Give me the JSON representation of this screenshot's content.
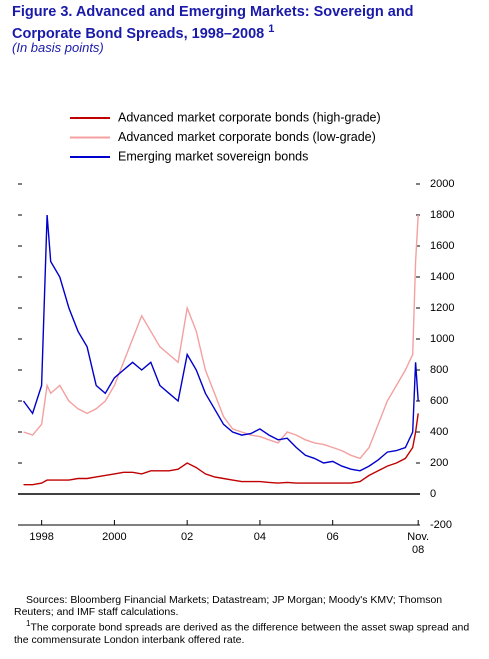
{
  "chart_data": {
    "type": "line",
    "title": "Figure 3. Advanced and Emerging Markets: Sovereign and Corporate Bond Spreads, 1998–2008",
    "title_note": "1",
    "subtitle": "(In basis points)",
    "x": [
      1998.0,
      1998.25,
      1998.5,
      1998.65,
      1998.75,
      1999.0,
      1999.25,
      1999.5,
      1999.75,
      2000.0,
      2000.25,
      2000.5,
      2000.75,
      2001.0,
      2001.25,
      2001.5,
      2001.75,
      2002.0,
      2002.25,
      2002.5,
      2002.75,
      2003.0,
      2003.25,
      2003.5,
      2003.75,
      2004.0,
      2004.25,
      2004.5,
      2004.75,
      2005.0,
      2005.25,
      2005.5,
      2005.75,
      2006.0,
      2006.25,
      2006.5,
      2006.75,
      2007.0,
      2007.25,
      2007.5,
      2007.75,
      2008.0,
      2008.25,
      2008.5,
      2008.7,
      2008.78,
      2008.85
    ],
    "series": [
      {
        "name": "Advanced market corporate bonds (high-grade)",
        "color": "#c00000",
        "values": [
          60,
          60,
          70,
          90,
          90,
          90,
          90,
          100,
          100,
          110,
          120,
          130,
          140,
          140,
          130,
          150,
          150,
          150,
          160,
          200,
          170,
          130,
          110,
          100,
          90,
          80,
          80,
          80,
          75,
          70,
          75,
          70,
          70,
          70,
          70,
          70,
          70,
          70,
          80,
          120,
          150,
          180,
          200,
          230,
          300,
          400,
          520
        ]
      },
      {
        "name": "Advanced market corporate bonds (low-grade)",
        "color": "#f4a0a0",
        "values": [
          400,
          380,
          450,
          700,
          650,
          700,
          600,
          550,
          520,
          550,
          600,
          700,
          850,
          1000,
          1150,
          1050,
          950,
          900,
          850,
          1200,
          1050,
          800,
          650,
          500,
          420,
          400,
          380,
          370,
          350,
          330,
          400,
          380,
          350,
          330,
          320,
          300,
          280,
          250,
          230,
          300,
          450,
          600,
          700,
          800,
          900,
          1500,
          1800
        ]
      },
      {
        "name": "Emerging market sovereign bonds",
        "color": "#0000cc",
        "values": [
          600,
          520,
          700,
          1800,
          1500,
          1400,
          1200,
          1050,
          950,
          700,
          650,
          750,
          800,
          850,
          800,
          850,
          700,
          650,
          600,
          900,
          800,
          650,
          550,
          450,
          400,
          380,
          390,
          420,
          380,
          350,
          360,
          300,
          250,
          230,
          200,
          210,
          180,
          160,
          150,
          180,
          220,
          270,
          280,
          300,
          400,
          850,
          600
        ]
      }
    ],
    "xlim": [
      1997.85,
      2008.9
    ],
    "xticks": [
      {
        "value": 1998.5,
        "label": "1998"
      },
      {
        "value": 2000.5,
        "label": "2000"
      },
      {
        "value": 2002.5,
        "label": "02"
      },
      {
        "value": 2004.5,
        "label": "04"
      },
      {
        "value": 2006.5,
        "label": "06"
      },
      {
        "value": 2008.85,
        "label": "Nov. 08"
      }
    ],
    "ylim": [
      -200,
      2000
    ],
    "yticks": [
      -200,
      0,
      200,
      400,
      600,
      800,
      1000,
      1200,
      1400,
      1600,
      1800,
      2000
    ],
    "legend": "top",
    "sources": "Sources: Bloomberg Financial Markets; Datastream; JP Morgan; Moody's KMV; Thomson Reuters; and IMF staff calculations.",
    "footnote_mark": "1",
    "footnote": "The corporate bond spreads are derived as the difference between the asset swap spread and the commensurate London interbank offered rate."
  }
}
